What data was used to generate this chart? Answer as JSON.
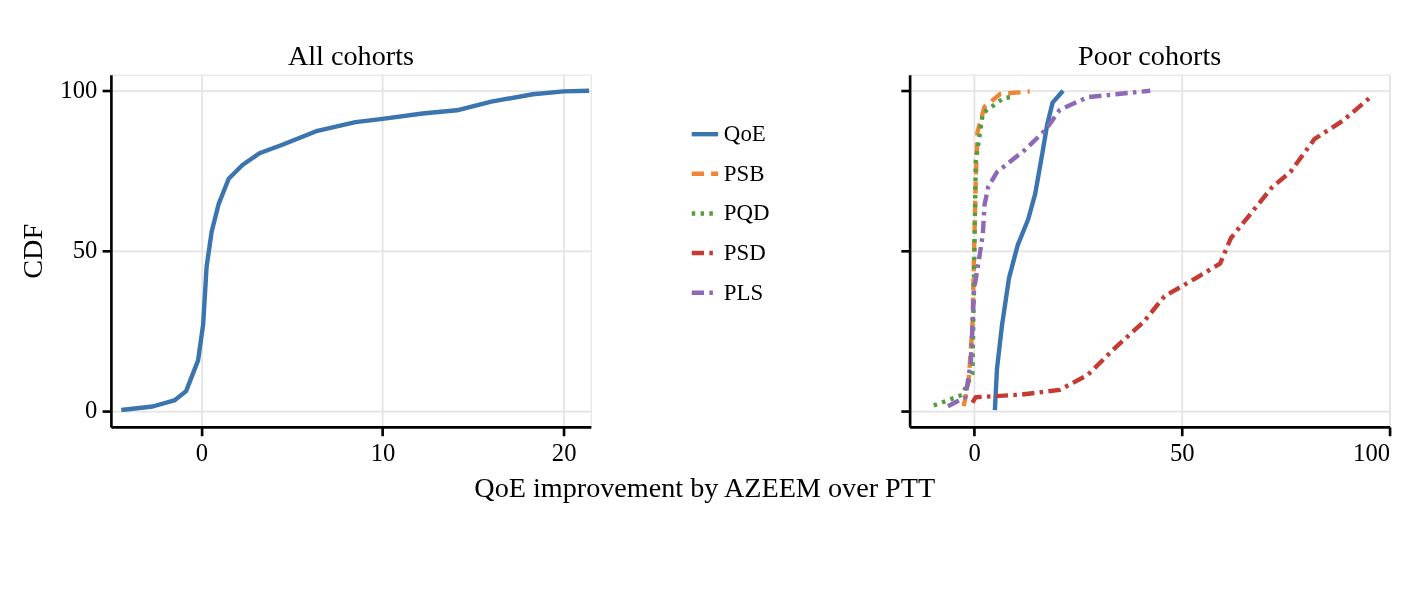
{
  "chart_data": [
    {
      "type": "line",
      "title": "All cohorts",
      "ylabel": "CDF",
      "xlabel": "QoE improvement by AZEEM over PTT",
      "xlim": [
        -5,
        21.5
      ],
      "xticks": [
        0,
        10,
        20
      ],
      "ylim": [
        -5,
        105
      ],
      "yticks": [
        0,
        50,
        100
      ],
      "grid": true,
      "legend": false,
      "series": [
        {
          "color": "#3a75b0",
          "line_style": "solid",
          "x": [
            -4.43,
            -2.7,
            -1.5,
            -0.85,
            -0.19,
            0.09,
            0.28,
            0.56,
            0.94,
            1.5,
            2.26,
            3.2,
            4.5,
            6.4,
            8.5,
            10,
            12.2,
            14.1,
            16,
            18.3,
            20,
            21.4
          ],
          "values": [
            0.3,
            1.4,
            3.3,
            6.2,
            15.8,
            27,
            45,
            56,
            64.5,
            72.5,
            76.8,
            80.5,
            83.2,
            87.5,
            90.2,
            91.2,
            92.9,
            93.9,
            96.6,
            98.9,
            99.8,
            100
          ]
        }
      ]
    },
    {
      "type": "line",
      "title": "Poor cohorts",
      "xlim": [
        -15.5,
        100
      ],
      "xticks": [
        0,
        50,
        100
      ],
      "ylim": [
        -5,
        105
      ],
      "yticks": [
        0,
        50,
        100
      ],
      "grid": true,
      "tick_labels": "x",
      "legend": "left",
      "series": [
        {
          "name": "QoE",
          "color": "#3a75b0",
          "line_style": "solid",
          "x": [
            5.0,
            5.5,
            6.7,
            8.4,
            10.5,
            13.0,
            14.7,
            16.4,
            17.6,
            18.9,
            21.4
          ],
          "values": [
            0.3,
            13,
            26.6,
            41.5,
            51.8,
            59.8,
            67.8,
            80.3,
            89.5,
            96.3,
            100
          ]
        },
        {
          "name": "PSB",
          "color": "#ef8636",
          "line_style": "dashed",
          "x": [
            -2.5,
            -1.3,
            -0.4,
            0,
            0.4,
            0.8,
            2.5,
            6.3,
            13.4
          ],
          "values": [
            1.5,
            9.5,
            26.6,
            49.5,
            72,
            87,
            95,
            99,
            99.8
          ]
        },
        {
          "name": "PQD",
          "color": "#519e3e",
          "line_style": "dotted",
          "x": [
            -9.7,
            -2.9,
            -0.4,
            0,
            0.4,
            2.1,
            7.1,
            8.8
          ],
          "values": [
            1.7,
            5,
            11.8,
            43.8,
            78,
            93,
            97.7,
            98
          ]
        },
        {
          "name": "PSD",
          "color": "#c53a32",
          "line_style": "dashdot",
          "x": [
            -0.4,
            0.4,
            11.3,
            20.6,
            27.3,
            34,
            40.8,
            45.8,
            53.4,
            59.2,
            61.8,
            66.8,
            71.8,
            76.1,
            81.9,
            88.7,
            95.4
          ],
          "values": [
            2.6,
            4.3,
            5.1,
            6.6,
            11.2,
            19.8,
            27.8,
            35.8,
            41.5,
            46,
            54,
            62,
            70,
            74.6,
            84.9,
            90.6,
            98
          ]
        },
        {
          "name": "PLS",
          "color": "#8d69b8",
          "line_style": "dashdot",
          "x": [
            -6.3,
            -2.1,
            -0.8,
            0,
            1.3,
            2.1,
            2.5,
            3.4,
            5.5,
            12.2,
            17.2,
            20.6,
            27.3,
            42.4
          ],
          "values": [
            1.5,
            4.3,
            15.2,
            38,
            48.3,
            55.2,
            64.3,
            70,
            74.6,
            81.5,
            87.8,
            94,
            98,
            100
          ]
        }
      ]
    }
  ]
}
